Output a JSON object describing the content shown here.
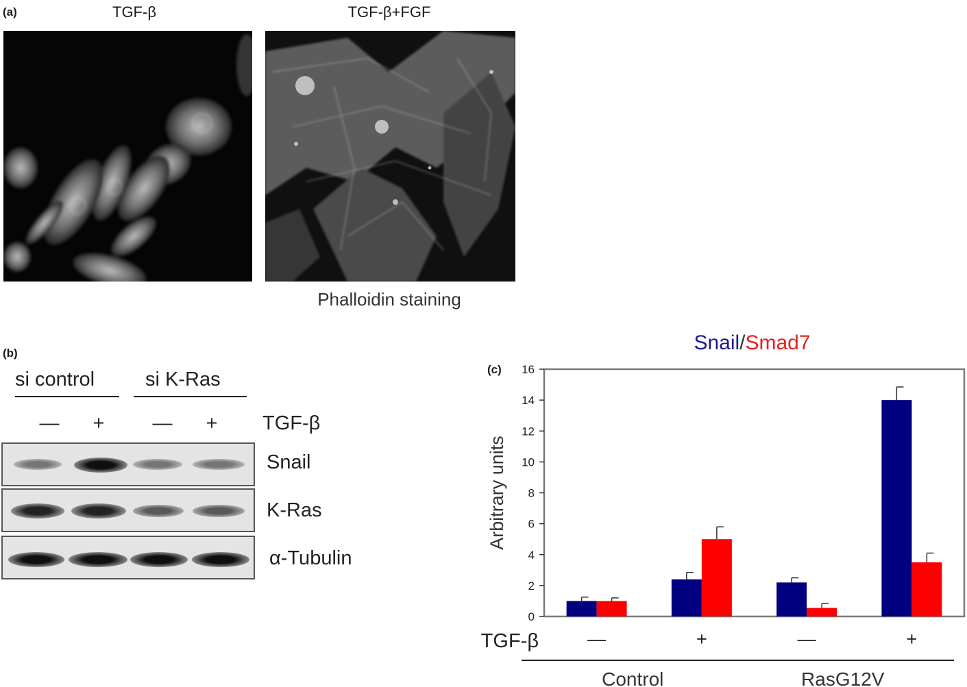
{
  "panel_a": {
    "label": "(a)",
    "conditions": [
      "TGF-β",
      "TGF-β+FGF"
    ],
    "caption": "Phalloidin staining"
  },
  "panel_b": {
    "label": "(b)",
    "groups": [
      "si control",
      "si K-Ras"
    ],
    "treatment_signs": [
      "—",
      "+",
      "—",
      "+"
    ],
    "treatment_label": "TGF-β",
    "rows": [
      {
        "protein": "Snail",
        "intensities": [
          0.45,
          1.0,
          0.45,
          0.45
        ]
      },
      {
        "protein": "K-Ras",
        "intensities": [
          0.9,
          0.9,
          0.6,
          0.6
        ]
      },
      {
        "protein": "α-Tubulin",
        "intensities": [
          1.0,
          1.0,
          1.0,
          1.0
        ]
      }
    ]
  },
  "panel_c": {
    "label": "(c)",
    "treatment_label": "TGF-β",
    "treatment_signs": [
      "—",
      "+",
      "—",
      "+"
    ],
    "groups": [
      "Control",
      "RasG12V"
    ]
  },
  "chart_data": {
    "type": "bar",
    "title_parts": [
      {
        "text": "Snail",
        "color": "#1b1b8c"
      },
      {
        "text": "/",
        "color": "#333333"
      },
      {
        "text": "Smad7",
        "color": "#e8201f"
      }
    ],
    "ylabel": "Arbitrary units",
    "xlabel": "",
    "ylim": [
      0,
      16
    ],
    "yticks": [
      "0",
      "2",
      "4",
      "6",
      "8",
      "10",
      "12",
      "14",
      "16"
    ],
    "categories": [
      "— Control",
      "+ Control",
      "— RasG12V",
      "+ RasG12V"
    ],
    "series": [
      {
        "name": "Snail",
        "color": "#000080",
        "values": [
          1.0,
          2.4,
          2.2,
          14.0
        ],
        "errors": [
          0.25,
          0.45,
          0.3,
          0.85
        ]
      },
      {
        "name": "Smad7",
        "color": "#ff0000",
        "values": [
          1.0,
          5.0,
          0.55,
          3.5
        ],
        "errors": [
          0.2,
          0.8,
          0.3,
          0.6
        ]
      }
    ],
    "grid": false
  }
}
